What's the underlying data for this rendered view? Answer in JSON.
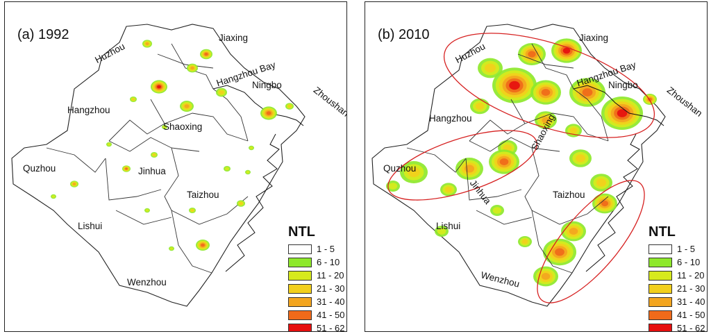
{
  "panels": [
    {
      "title": "(a) 1992",
      "labels": [
        "Huzhou",
        "Jiaxing",
        "Hangzhou Bay",
        "Ningbo",
        "Zhoushan",
        "Hangzhou",
        "Shaoxing",
        "Quzhou",
        "Jinhua",
        "Taizhou",
        "Lishui",
        "Wenzhou"
      ]
    },
    {
      "title": "(b) 2010",
      "labels": [
        "Huzhou",
        "Jiaxing",
        "Hangzhou Bay",
        "Ningbo",
        "Zhoushan",
        "Hangzhou",
        "Shaoxing",
        "Quzhou",
        "Jinhua",
        "Taizhou",
        "Lishui",
        "Wenzhou"
      ]
    }
  ],
  "legend": {
    "title": "NTL",
    "classes": [
      {
        "label": "1 - 5",
        "color": "#ffffff"
      },
      {
        "label": "6 - 10",
        "color": "#8ee82b"
      },
      {
        "label": "11 - 20",
        "color": "#d7ea1d"
      },
      {
        "label": "21 - 30",
        "color": "#f2cf1c"
      },
      {
        "label": "31 - 40",
        "color": "#f3a51f"
      },
      {
        "label": "41 - 50",
        "color": "#f06a1a"
      },
      {
        "label": "51 - 62",
        "color": "#e60f0f"
      }
    ]
  }
}
